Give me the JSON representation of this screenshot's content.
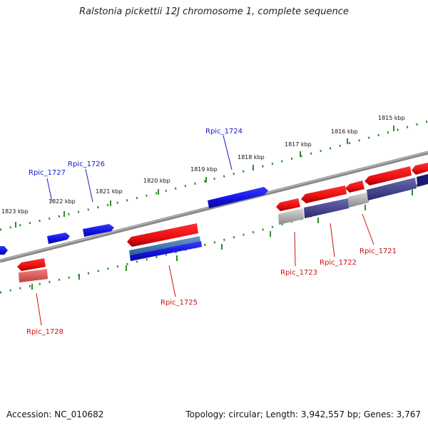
{
  "title": "Ralstonia pickettii 12J chromosome 1, complete sequence",
  "footer": {
    "accession": "Accession: NC_010682",
    "topology": "Topology: circular; Length: 3,942,557 bp; Genes: 3,767"
  },
  "scale_labels": [
    {
      "id": "kbp-1823",
      "text": "1823 kbp"
    },
    {
      "id": "kbp-1822",
      "text": "1822 kbp"
    },
    {
      "id": "kbp-1821",
      "text": "1821 kbp"
    },
    {
      "id": "kbp-1820",
      "text": "1820 kbp"
    },
    {
      "id": "kbp-1819",
      "text": "1819 kbp"
    },
    {
      "id": "kbp-1818",
      "text": "1818 kbp"
    },
    {
      "id": "kbp-1817",
      "text": "1817 kbp"
    },
    {
      "id": "kbp-1816",
      "text": "1816 kbp"
    },
    {
      "id": "kbp-1815",
      "text": "1815 kbp"
    }
  ],
  "gene_labels": [
    {
      "id": "rpic-1727",
      "text": "Rpic_1727",
      "strand": "forward"
    },
    {
      "id": "rpic-1726",
      "text": "Rpic_1726",
      "strand": "forward"
    },
    {
      "id": "rpic-1724",
      "text": "Rpic_1724",
      "strand": "forward"
    },
    {
      "id": "rpic-1728",
      "text": "Rpic_1728",
      "strand": "reverse"
    },
    {
      "id": "rpic-1725",
      "text": "Rpic_1725",
      "strand": "reverse"
    },
    {
      "id": "rpic-1723",
      "text": "Rpic_1723",
      "strand": "reverse"
    },
    {
      "id": "rpic-1722",
      "text": "Rpic_1722",
      "strand": "reverse"
    },
    {
      "id": "rpic-1721",
      "text": "Rpic_1721",
      "strand": "reverse"
    }
  ],
  "colors": {
    "forward_gene": "#1a1aee",
    "reverse_gene": "#ee1111",
    "backbone": "#777777",
    "scale_ticks": "#2e8b2e",
    "forward_label": "#1a1acc",
    "reverse_label": "#cc1111"
  }
}
